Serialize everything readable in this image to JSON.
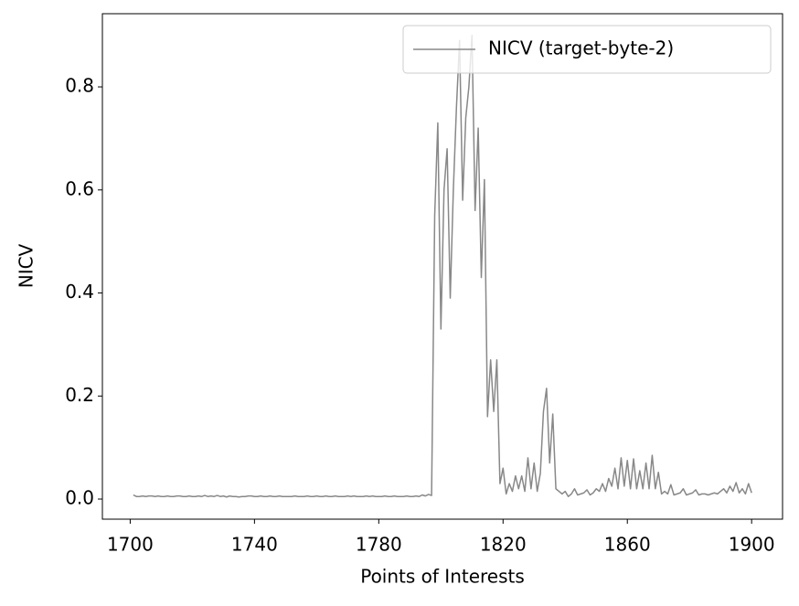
{
  "chart_data": {
    "type": "line",
    "xlabel": "Points of Interests",
    "ylabel": "NICV",
    "x": [
      1701,
      1702,
      1703,
      1704,
      1705,
      1706,
      1707,
      1708,
      1709,
      1710,
      1711,
      1712,
      1713,
      1714,
      1715,
      1716,
      1717,
      1718,
      1719,
      1720,
      1721,
      1722,
      1723,
      1724,
      1725,
      1726,
      1727,
      1728,
      1729,
      1730,
      1731,
      1732,
      1733,
      1734,
      1735,
      1736,
      1737,
      1738,
      1739,
      1740,
      1741,
      1742,
      1743,
      1744,
      1745,
      1746,
      1747,
      1748,
      1749,
      1750,
      1751,
      1752,
      1753,
      1754,
      1755,
      1756,
      1757,
      1758,
      1759,
      1760,
      1761,
      1762,
      1763,
      1764,
      1765,
      1766,
      1767,
      1768,
      1769,
      1770,
      1771,
      1772,
      1773,
      1774,
      1775,
      1776,
      1777,
      1778,
      1779,
      1780,
      1781,
      1782,
      1783,
      1784,
      1785,
      1786,
      1787,
      1788,
      1789,
      1790,
      1791,
      1792,
      1793,
      1794,
      1795,
      1796,
      1797,
      1798,
      1799,
      1800,
      1801,
      1802,
      1803,
      1804,
      1805,
      1806,
      1807,
      1808,
      1809,
      1810,
      1811,
      1812,
      1813,
      1814,
      1815,
      1816,
      1817,
      1818,
      1819,
      1820,
      1821,
      1822,
      1823,
      1824,
      1825,
      1826,
      1827,
      1828,
      1829,
      1830,
      1831,
      1832,
      1833,
      1834,
      1835,
      1836,
      1837,
      1838,
      1839,
      1840,
      1841,
      1842,
      1843,
      1844,
      1845,
      1846,
      1847,
      1848,
      1849,
      1850,
      1851,
      1852,
      1853,
      1854,
      1855,
      1856,
      1857,
      1858,
      1859,
      1860,
      1861,
      1862,
      1863,
      1864,
      1865,
      1866,
      1867,
      1868,
      1869,
      1870,
      1871,
      1872,
      1873,
      1874,
      1875,
      1876,
      1877,
      1878,
      1879,
      1880,
      1881,
      1882,
      1883,
      1884,
      1885,
      1886,
      1887,
      1888,
      1889,
      1890,
      1891,
      1892,
      1893,
      1894,
      1895,
      1896,
      1897,
      1898,
      1899,
      1900
    ],
    "series": [
      {
        "name": "NICV (target-byte-2)",
        "color": "#888888",
        "values": [
          0.008,
          0.005,
          0.005,
          0.006,
          0.005,
          0.006,
          0.006,
          0.005,
          0.006,
          0.005,
          0.005,
          0.006,
          0.005,
          0.005,
          0.006,
          0.006,
          0.005,
          0.005,
          0.006,
          0.005,
          0.005,
          0.006,
          0.005,
          0.007,
          0.005,
          0.006,
          0.005,
          0.007,
          0.005,
          0.006,
          0.004,
          0.006,
          0.005,
          0.005,
          0.004,
          0.005,
          0.005,
          0.006,
          0.006,
          0.005,
          0.005,
          0.006,
          0.005,
          0.005,
          0.006,
          0.005,
          0.005,
          0.006,
          0.005,
          0.005,
          0.005,
          0.005,
          0.006,
          0.005,
          0.005,
          0.005,
          0.006,
          0.005,
          0.005,
          0.006,
          0.005,
          0.005,
          0.006,
          0.005,
          0.005,
          0.006,
          0.005,
          0.005,
          0.005,
          0.006,
          0.005,
          0.006,
          0.005,
          0.005,
          0.005,
          0.006,
          0.005,
          0.006,
          0.005,
          0.005,
          0.005,
          0.006,
          0.005,
          0.005,
          0.006,
          0.005,
          0.005,
          0.005,
          0.006,
          0.005,
          0.005,
          0.006,
          0.005,
          0.008,
          0.006,
          0.009,
          0.007,
          0.55,
          0.73,
          0.33,
          0.6,
          0.68,
          0.39,
          0.6,
          0.76,
          0.89,
          0.58,
          0.74,
          0.8,
          0.9,
          0.56,
          0.72,
          0.43,
          0.62,
          0.16,
          0.27,
          0.17,
          0.27,
          0.03,
          0.06,
          0.01,
          0.03,
          0.015,
          0.045,
          0.02,
          0.045,
          0.015,
          0.08,
          0.02,
          0.07,
          0.015,
          0.05,
          0.17,
          0.215,
          0.07,
          0.165,
          0.02,
          0.015,
          0.01,
          0.015,
          0.005,
          0.01,
          0.02,
          0.008,
          0.01,
          0.012,
          0.018,
          0.008,
          0.012,
          0.02,
          0.015,
          0.03,
          0.015,
          0.04,
          0.025,
          0.06,
          0.02,
          0.08,
          0.025,
          0.075,
          0.02,
          0.078,
          0.02,
          0.055,
          0.02,
          0.07,
          0.02,
          0.085,
          0.02,
          0.052,
          0.01,
          0.015,
          0.01,
          0.028,
          0.008,
          0.01,
          0.012,
          0.02,
          0.008,
          0.01,
          0.012,
          0.018,
          0.008,
          0.01,
          0.01,
          0.008,
          0.01,
          0.012,
          0.01,
          0.015,
          0.02,
          0.012,
          0.025,
          0.015,
          0.032,
          0.012,
          0.02,
          0.01,
          0.03,
          0.012
        ]
      }
    ],
    "xlim": [
      1691.05,
      1909.95
    ],
    "xticks": [
      1700,
      1740,
      1780,
      1820,
      1860,
      1900
    ],
    "ylim": [
      -0.039,
      0.942
    ],
    "yticks": [
      {
        "value": 0,
        "label": "0.0"
      },
      0.2,
      0.4,
      0.6,
      0.8
    ],
    "legend": "upper right"
  }
}
